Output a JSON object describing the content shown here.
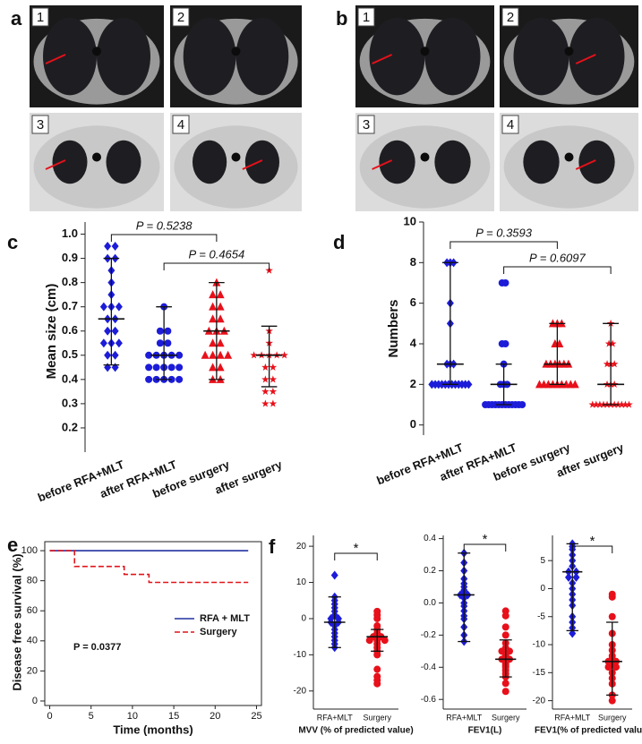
{
  "image_panels": [
    {
      "panel_label": "a",
      "images": [
        "1",
        "2",
        "3",
        "4"
      ]
    },
    {
      "panel_label": "b",
      "images": [
        "1",
        "2",
        "3",
        "4"
      ]
    }
  ],
  "chart_data": [
    {
      "type": "dot_plot",
      "panel_label": "c",
      "y_label": "Mean size (cm)",
      "ylim": [
        0.1,
        1.05
      ],
      "yticks": [
        0.2,
        0.3,
        0.4,
        0.5,
        0.6,
        0.7,
        0.8,
        0.9,
        {
          "value": 1,
          "label": "1.0"
        }
      ],
      "categories": [
        "before RFA+MLT",
        "after RFA+MLT",
        "before surgery",
        "after surgery"
      ],
      "groups": [
        {
          "marker": "diamond",
          "color": "#1c1cd9",
          "values": [
            0.95,
            0.95,
            0.9,
            0.9,
            0.85,
            0.8,
            0.75,
            0.7,
            0.7,
            0.7,
            0.65,
            0.65,
            0.6,
            0.6,
            0.55,
            0.55,
            0.55,
            0.5,
            0.5,
            0.45,
            0.45
          ],
          "center": 0.65,
          "low": 0.46,
          "high": 0.9
        },
        {
          "marker": "circle",
          "color": "#1c1cd9",
          "values": [
            0.7,
            0.6,
            0.6,
            0.55,
            0.55,
            0.5,
            0.5,
            0.5,
            0.5,
            0.5,
            0.45,
            0.45,
            0.45,
            0.45,
            0.45,
            0.4,
            0.4,
            0.4,
            0.4,
            0.4
          ],
          "center": 0.5,
          "low": 0.4,
          "high": 0.7
        },
        {
          "marker": "triangle",
          "color": "#e8101a",
          "values": [
            0.8,
            0.75,
            0.75,
            0.7,
            0.7,
            0.65,
            0.65,
            0.6,
            0.6,
            0.6,
            0.55,
            0.55,
            0.5,
            0.5,
            0.5,
            0.5,
            0.45,
            0.45,
            0.4,
            0.4
          ],
          "center": 0.6,
          "low": 0.4,
          "high": 0.8
        },
        {
          "marker": "star",
          "color": "#e8101a",
          "values": [
            0.85,
            0.6,
            0.55,
            0.5,
            0.5,
            0.5,
            0.5,
            0.5,
            0.45,
            0.45,
            0.4,
            0.4,
            0.35,
            0.35,
            0.3,
            0.3
          ],
          "center": 0.5,
          "low": 0.37,
          "high": 0.62
        }
      ],
      "annotations": [
        {
          "text": "P = 0.5238"
        },
        {
          "text": "P = 0.4654"
        }
      ]
    },
    {
      "type": "dot_plot",
      "panel_label": "d",
      "y_label": "Numbers",
      "ylim": [
        -0.5,
        10
      ],
      "yticks": [
        0,
        2,
        4,
        6,
        8,
        10
      ],
      "categories": [
        "before RFA+MLT",
        "after RFA+MLT",
        "before surgery",
        "after surgery"
      ],
      "groups": [
        {
          "marker": "diamond",
          "color": "#1c1cd9",
          "values": [
            8,
            8,
            8,
            6,
            5,
            3,
            3,
            3,
            2,
            2,
            2,
            2,
            2,
            2,
            2,
            2,
            2,
            2,
            2,
            2
          ],
          "center": 3,
          "low": 2,
          "high": 8
        },
        {
          "marker": "circle",
          "color": "#1c1cd9",
          "values": [
            7,
            7,
            4,
            4,
            3,
            2,
            2,
            2,
            1,
            1,
            1,
            1,
            1,
            1,
            1,
            1,
            1,
            1,
            1,
            1
          ],
          "center": 2,
          "low": 1,
          "high": 3
        },
        {
          "marker": "triangle",
          "color": "#e8101a",
          "values": [
            5,
            5,
            5,
            4,
            4,
            3,
            3,
            3,
            3,
            3,
            3,
            2,
            2,
            2,
            2,
            2,
            2,
            2,
            2,
            2
          ],
          "center": 3,
          "low": 2,
          "high": 5
        },
        {
          "marker": "star",
          "color": "#e8101a",
          "values": [
            5,
            4,
            4,
            3,
            3,
            3,
            2,
            2,
            2,
            1,
            1,
            1,
            1,
            1,
            1,
            1,
            1,
            1,
            1,
            1
          ],
          "center": 2,
          "low": 1,
          "high": 5
        }
      ],
      "annotations": [
        {
          "text": "P = 0.3593"
        },
        {
          "text": "P = 0.6097"
        }
      ]
    },
    {
      "type": "line",
      "panel_label": "e",
      "x_label": "Time (months)",
      "y_label": "Disease free survival (%)",
      "xlim": [
        -0.6,
        25.6
      ],
      "xticks": [
        0,
        5,
        10,
        15,
        20,
        25
      ],
      "ylim": [
        -3,
        106
      ],
      "yticks": [
        0,
        20,
        40,
        60,
        80,
        100
      ],
      "series": [
        {
          "name": "RFA + MLT",
          "color": "#2230a0",
          "dashed": false,
          "x": [
            0,
            24
          ],
          "values": [
            100,
            100
          ]
        },
        {
          "name": "Surgery",
          "color": "#e0141b",
          "dashed": true,
          "x": [
            0,
            3,
            3,
            9,
            9,
            12,
            12,
            24
          ],
          "values": [
            100,
            100,
            89.5,
            89.5,
            84.2,
            84.2,
            78.9,
            78.9
          ]
        }
      ],
      "annotations": [
        {
          "text": "P = 0.0377"
        }
      ],
      "legend": "right"
    },
    {
      "type": "dot_plot",
      "panel_label": "f",
      "x_label": "MVV (% of predicted value)",
      "ylim": [
        -25,
        23
      ],
      "yticks": [
        -20,
        -10,
        0,
        10,
        20
      ],
      "categories": [
        "RFA+MLT",
        "Surgery"
      ],
      "groups": [
        {
          "marker": "diamond",
          "color": "#1c1cd9",
          "values": [
            12,
            6,
            5,
            4,
            3,
            2,
            1,
            0,
            0,
            -1,
            -1,
            -2,
            -3,
            -4,
            -5,
            -6,
            -7,
            -8
          ],
          "center": -1,
          "low": -8,
          "high": 6
        },
        {
          "marker": "circle",
          "color": "#e8101a",
          "values": [
            2,
            1,
            0,
            -2,
            -3,
            -4,
            -5,
            -5,
            -6,
            -6,
            -6,
            -7,
            -8,
            -9,
            -10,
            -14,
            -16,
            -17,
            -18
          ],
          "center": -5,
          "low": -9,
          "high": -3
        }
      ],
      "annotations": [
        {
          "text": "*"
        }
      ]
    },
    {
      "type": "dot_plot",
      "x_label": "FEV1(L)",
      "ylim": [
        -0.66,
        0.42
      ],
      "yticks": [
        -0.6,
        -0.4,
        -0.2,
        {
          "value": 0,
          "label": "0.0"
        },
        0.2,
        0.4
      ],
      "categories": [
        "RFA+MLT",
        "Surgery"
      ],
      "groups": [
        {
          "marker": "diamond",
          "color": "#1c1cd9",
          "values": [
            0.31,
            0.25,
            0.2,
            0.15,
            0.12,
            0.1,
            0.08,
            0.07,
            0.05,
            0.05,
            0.03,
            0,
            -0.02,
            -0.05,
            -0.08,
            -0.1,
            -0.15,
            -0.2,
            -0.24
          ],
          "center": 0.05,
          "low": -0.24,
          "high": 0.31
        },
        {
          "marker": "circle",
          "color": "#e8101a",
          "values": [
            -0.05,
            -0.08,
            -0.15,
            -0.2,
            -0.25,
            -0.28,
            -0.3,
            -0.3,
            -0.32,
            -0.33,
            -0.34,
            -0.35,
            -0.35,
            -0.36,
            -0.37,
            -0.38,
            -0.39,
            -0.4,
            -0.42,
            -0.44,
            -0.46,
            -0.5,
            -0.55
          ],
          "center": -0.35,
          "low": -0.46,
          "high": -0.23
        }
      ],
      "annotations": [
        {
          "text": "*"
        }
      ]
    },
    {
      "type": "dot_plot",
      "x_label": "FEV1(% of predicted value)",
      "ylim": [
        -21.5,
        9.5
      ],
      "yticks": [
        -20,
        -15,
        -10,
        -5,
        0,
        5
      ],
      "categories": [
        "RFA+MLT",
        "Surgery"
      ],
      "groups": [
        {
          "marker": "diamond",
          "color": "#1c1cd9",
          "values": [
            8,
            7.5,
            7,
            6,
            5,
            4,
            3,
            3,
            2,
            2,
            1,
            0,
            -1,
            -2,
            -3,
            -5,
            -6,
            -7,
            -8
          ],
          "center": 3,
          "low": -7.5,
          "high": 8
        },
        {
          "marker": "circle",
          "color": "#e8101a",
          "values": [
            -1,
            -1.5,
            -5,
            -8,
            -10,
            -11,
            -12,
            -12.5,
            -13,
            -13,
            -13.5,
            -14,
            -14,
            -15,
            -16,
            -17,
            -19,
            -20
          ],
          "center": -13,
          "low": -19,
          "high": -6
        }
      ],
      "annotations": [
        {
          "text": "*"
        }
      ]
    }
  ]
}
